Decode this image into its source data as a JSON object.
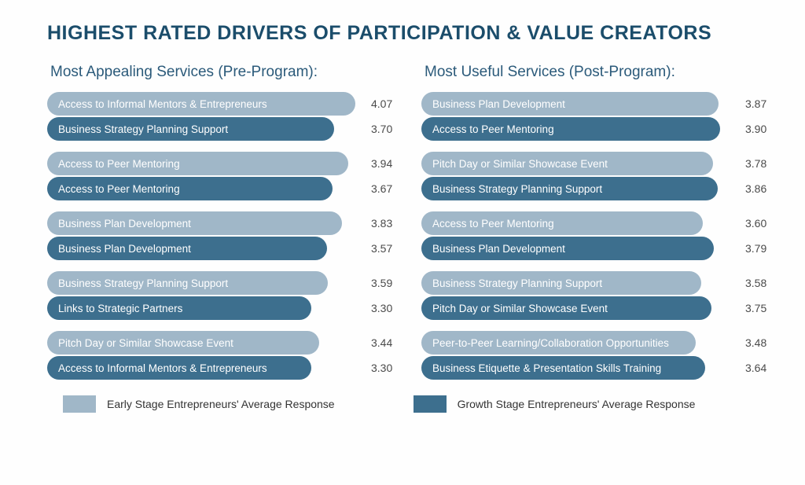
{
  "title": "HIGHEST RATED DRIVERS OF PARTICIPATION & VALUE CREATORS",
  "colors": {
    "early": "#a0b7c8",
    "growth": "#3d6f8e",
    "title": "#1b4d6b",
    "subtitle": "#2b5a7a",
    "value_text": "#4a4a4a"
  },
  "bar_value_range": {
    "min": 3.0,
    "max": 4.2
  },
  "bar_width_range": {
    "min_pct": 78,
    "max_pct": 100
  },
  "left": {
    "subtitle": "Most Appealing Services (Pre-Program):",
    "groups": [
      {
        "early": {
          "label": "Access to Informal Mentors & Entrepreneurs",
          "value": 4.07
        },
        "growth": {
          "label": "Business Strategy Planning Support",
          "value": 3.7
        }
      },
      {
        "early": {
          "label": "Access to Peer Mentoring",
          "value": 3.94
        },
        "growth": {
          "label": "Access to Peer Mentoring",
          "value": 3.67
        }
      },
      {
        "early": {
          "label": "Business Plan Development",
          "value": 3.83
        },
        "growth": {
          "label": "Business Plan Development",
          "value": 3.57
        }
      },
      {
        "early": {
          "label": "Business Strategy Planning Support",
          "value": 3.59
        },
        "growth": {
          "label": "Links to Strategic Partners",
          "value": 3.3
        }
      },
      {
        "early": {
          "label": "Pitch Day or Similar Showcase Event",
          "value": 3.44
        },
        "growth": {
          "label": "Access to Informal Mentors & Entrepreneurs",
          "value": 3.3
        }
      }
    ]
  },
  "right": {
    "subtitle": "Most Useful Services (Post-Program):",
    "groups": [
      {
        "early": {
          "label": "Business Plan Development",
          "value": 3.87
        },
        "growth": {
          "label": "Access to Peer Mentoring",
          "value": 3.9
        }
      },
      {
        "early": {
          "label": "Pitch Day or Similar Showcase Event",
          "value": 3.78
        },
        "growth": {
          "label": "Business Strategy Planning Support",
          "value": 3.86
        }
      },
      {
        "early": {
          "label": "Access to Peer Mentoring",
          "value": 3.6
        },
        "growth": {
          "label": "Business Plan Development",
          "value": 3.79
        }
      },
      {
        "early": {
          "label": "Business Strategy Planning Support",
          "value": 3.58
        },
        "growth": {
          "label": "Pitch Day or Similar Showcase Event",
          "value": 3.75
        }
      },
      {
        "early": {
          "label": "Peer-to-Peer Learning/Collaboration Opportunities",
          "value": 3.48
        },
        "growth": {
          "label": "Business Etiquette & Presentation Skills Training",
          "value": 3.64
        }
      }
    ]
  },
  "legend": {
    "early": "Early Stage Entrepreneurs' Average Response",
    "growth": "Growth Stage Entrepreneurs' Average Response"
  }
}
